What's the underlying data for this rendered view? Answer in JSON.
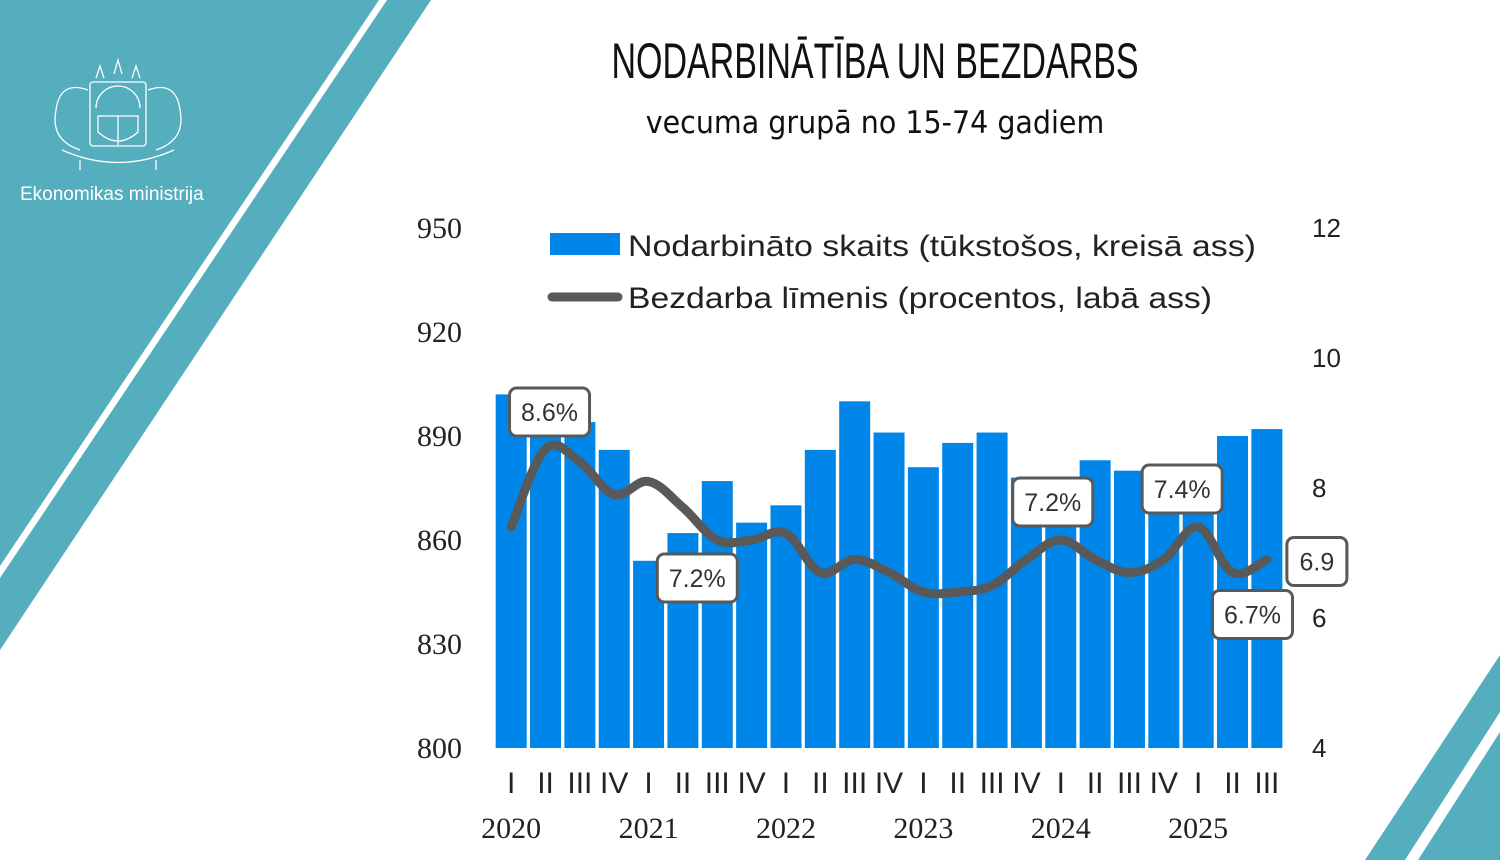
{
  "header": {
    "title": "NODARBINĀTĪBA UN BEZDARBS",
    "subtitle": "vecuma grupā no 15-74 gadiem",
    "organization": "Ekonomikas ministrija"
  },
  "colors": {
    "teal": "#55aebe",
    "bar": "#0086e8",
    "line": "#595959"
  },
  "chart_data": {
    "type": "bar+line",
    "title": "NODARBINĀTĪBA UN BEZDARBS",
    "subtitle": "vecuma grupā no 15-74 gadiem",
    "quarter_labels": [
      "I",
      "II",
      "III",
      "IV",
      "I",
      "II",
      "III",
      "IV",
      "I",
      "II",
      "III",
      "IV",
      "I",
      "II",
      "III",
      "IV",
      "I",
      "II",
      "III",
      "IV",
      "I",
      "II",
      "III"
    ],
    "years": [
      "2020",
      "2021",
      "2022",
      "2023",
      "2024",
      "2025"
    ],
    "y_left": {
      "range": [
        800,
        950
      ],
      "ticks": [
        "800",
        "830",
        "860",
        "890",
        "920",
        "950"
      ]
    },
    "y_right": {
      "range": [
        4,
        12
      ],
      "ticks": [
        "4",
        "6",
        "8",
        "10",
        "12"
      ]
    },
    "series": [
      {
        "name": "Nodarbināto skaits (tūkstošos, kreisā ass)",
        "type": "bar",
        "axis": "left",
        "values": [
          902,
          898,
          894,
          886,
          854,
          862,
          877,
          865,
          870,
          886,
          900,
          891,
          881,
          888,
          891,
          878,
          876,
          883,
          880,
          868,
          878,
          890,
          892
        ]
      },
      {
        "name": "Bezdarba līmenis (procentos, labā ass)",
        "type": "line",
        "axis": "right",
        "values": [
          7.4,
          8.6,
          8.4,
          7.9,
          8.1,
          7.7,
          7.2,
          7.2,
          7.3,
          6.7,
          6.9,
          6.7,
          6.4,
          6.4,
          6.5,
          6.9,
          7.2,
          6.9,
          6.7,
          6.9,
          7.4,
          6.7,
          6.9
        ]
      }
    ],
    "annotations": [
      {
        "index": 1,
        "text": "8.6%"
      },
      {
        "index": 6,
        "text": "7.2%"
      },
      {
        "index": 16,
        "text": "7.2%"
      },
      {
        "index": 20,
        "text": "7.4%"
      },
      {
        "index": 21,
        "text": "6.7%"
      },
      {
        "index": 22,
        "text": "6.9"
      }
    ],
    "legend": "top",
    "grid": false
  }
}
